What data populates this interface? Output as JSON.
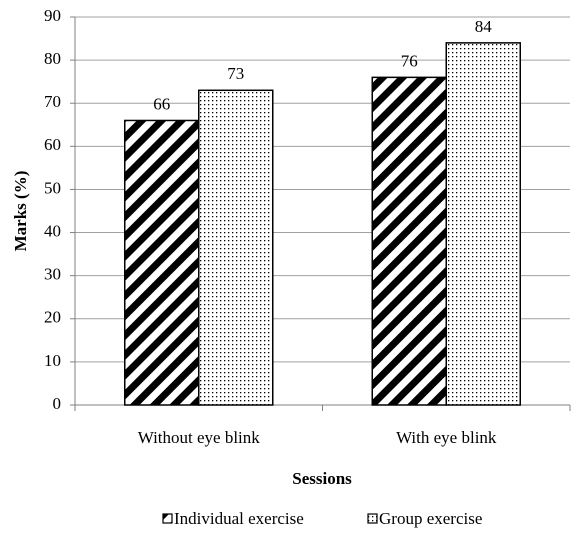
{
  "chart_data": {
    "type": "bar",
    "categories": [
      "Without eye blink",
      "With eye blink"
    ],
    "series": [
      {
        "name": "Individual exercise",
        "color": "#000000",
        "pattern": "stripes",
        "values": [
          66,
          76
        ]
      },
      {
        "name": "Group exercise",
        "color": "#000000",
        "pattern": "dots",
        "values": [
          73,
          84
        ]
      }
    ],
    "xlabel": "Sessions",
    "ylabel": "Marks (%)",
    "ylim": [
      0,
      90
    ],
    "yticks": [
      0,
      10,
      20,
      30,
      40,
      50,
      60,
      70,
      80,
      90
    ],
    "grid": true,
    "legend": "bottom"
  }
}
